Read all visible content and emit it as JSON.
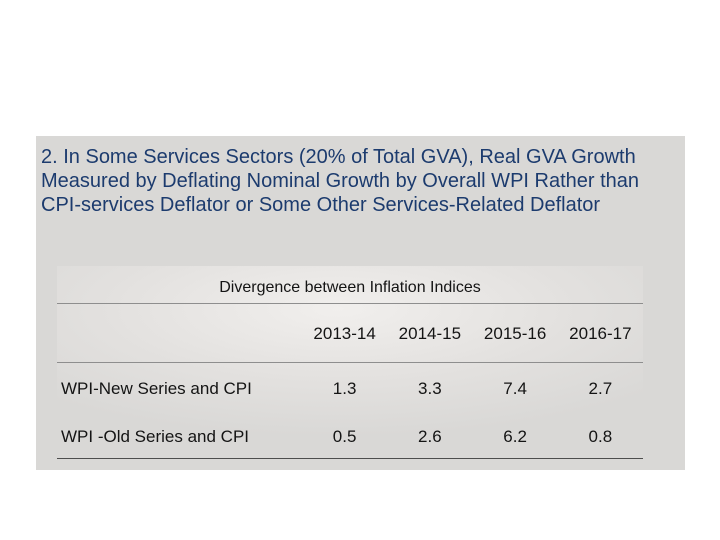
{
  "slide": {
    "title": "2. In Some Services Sectors (20% of Total GVA), Real GVA Growth Measured by Deflating Nominal Growth by Overall WPI Rather than CPI-services Deflator or Some Other Services-Related Deflator",
    "colors": {
      "title_text": "#1c3b6e",
      "box_background": "#d9d8d6",
      "table_text": "#141414",
      "rule_light": "#8e8e8e",
      "rule_dark": "#4d4d4d"
    }
  },
  "table": {
    "caption": "Divergence between Inflation Indices",
    "columns": [
      "2013-14",
      "2014-15",
      "2015-16",
      "2016-17"
    ],
    "rows": [
      {
        "label": "WPI-New Series and CPI",
        "values": [
          "1.3",
          "3.3",
          "7.4",
          "2.7"
        ]
      },
      {
        "label": "WPI -Old Series and CPI",
        "values": [
          "0.5",
          "2.6",
          "6.2",
          "0.8"
        ]
      }
    ]
  },
  "chart_data": {
    "type": "table",
    "title": "Divergence between Inflation Indices",
    "categories": [
      "2013-14",
      "2014-15",
      "2015-16",
      "2016-17"
    ],
    "series": [
      {
        "name": "WPI-New Series and CPI",
        "values": [
          1.3,
          3.3,
          7.4,
          2.7
        ]
      },
      {
        "name": "WPI -Old Series and CPI",
        "values": [
          0.5,
          2.6,
          6.2,
          0.8
        ]
      }
    ],
    "layout": {
      "grid": false,
      "legend": "none",
      "note": "horizontal rules under caption, under header row, and under last data row"
    }
  }
}
